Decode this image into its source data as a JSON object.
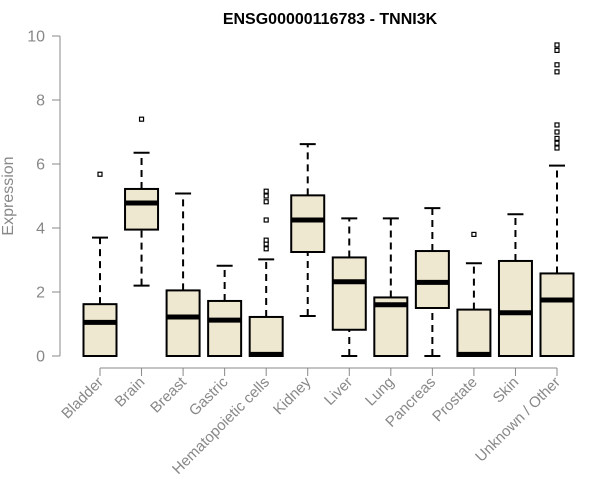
{
  "chart_data": {
    "type": "box",
    "title": "ENSG00000116783 - TNNI3K",
    "xlabel": "",
    "ylabel": "Expression",
    "ylim": [
      0,
      10
    ],
    "yticks": [
      0,
      2,
      4,
      6,
      8,
      10
    ],
    "grid": false,
    "colors": {
      "box_fill": "#efe8d0",
      "stroke": "#000000",
      "axis": "#888888",
      "tick_label": "#888888",
      "title": "#000000"
    },
    "categories": [
      "Bladder",
      "Brain",
      "Breast",
      "Gastric",
      "Hematopoietic cells",
      "Kidney",
      "Liver",
      "Lung",
      "Pancreas",
      "Prostate",
      "Skin",
      "Unknown / Other"
    ],
    "boxes": [
      {
        "category": "Bladder",
        "whisker_low": 0.0,
        "q1": 0.0,
        "median": 1.05,
        "q3": 1.62,
        "whisker_high": 3.7,
        "outliers": [
          5.68
        ]
      },
      {
        "category": "Brain",
        "whisker_low": 2.2,
        "q1": 3.95,
        "median": 4.78,
        "q3": 5.22,
        "whisker_high": 6.35,
        "outliers": [
          7.4
        ]
      },
      {
        "category": "Breast",
        "whisker_low": 0.0,
        "q1": 0.0,
        "median": 1.22,
        "q3": 2.05,
        "whisker_high": 5.08,
        "outliers": []
      },
      {
        "category": "Gastric",
        "whisker_low": 0.0,
        "q1": 0.0,
        "median": 1.12,
        "q3": 1.72,
        "whisker_high": 2.82,
        "outliers": []
      },
      {
        "category": "Hematopoietic cells",
        "whisker_low": 0.0,
        "q1": 0.0,
        "median": 0.05,
        "q3": 1.22,
        "whisker_high": 3.02,
        "outliers": [
          3.35,
          3.5,
          3.62,
          4.25,
          4.82,
          5.0,
          5.15
        ]
      },
      {
        "category": "Kidney",
        "whisker_low": 1.25,
        "q1": 3.25,
        "median": 4.25,
        "q3": 5.02,
        "whisker_high": 6.62,
        "outliers": []
      },
      {
        "category": "Liver",
        "whisker_low": 0.0,
        "q1": 0.82,
        "median": 2.32,
        "q3": 3.08,
        "whisker_high": 4.3,
        "outliers": []
      },
      {
        "category": "Lung",
        "whisker_low": 0.0,
        "q1": 0.0,
        "median": 1.6,
        "q3": 1.83,
        "whisker_high": 4.3,
        "outliers": []
      },
      {
        "category": "Pancreas",
        "whisker_low": 0.0,
        "q1": 1.5,
        "median": 2.3,
        "q3": 3.28,
        "whisker_high": 4.62,
        "outliers": []
      },
      {
        "category": "Prostate",
        "whisker_low": 0.0,
        "q1": 0.0,
        "median": 0.05,
        "q3": 1.45,
        "whisker_high": 2.9,
        "outliers": [
          3.8
        ]
      },
      {
        "category": "Skin",
        "whisker_low": 0.0,
        "q1": 0.0,
        "median": 1.35,
        "q3": 2.97,
        "whisker_high": 4.43,
        "outliers": []
      },
      {
        "category": "Unknown / Other",
        "whisker_low": 0.0,
        "q1": 0.0,
        "median": 1.75,
        "q3": 2.58,
        "whisker_high": 5.95,
        "outliers": [
          6.5,
          6.65,
          6.8,
          7.0,
          7.22,
          8.88,
          9.1,
          9.55,
          9.72
        ]
      }
    ]
  }
}
